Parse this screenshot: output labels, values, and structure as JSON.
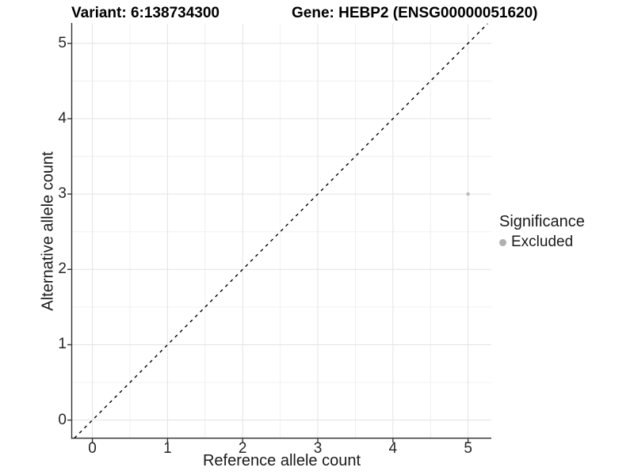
{
  "chart_data": {
    "type": "scatter",
    "title_variant": "Variant: 6:138734300",
    "title_gene": "Gene: HEBP2 (ENSG00000051620)",
    "xlabel": "Reference allele count",
    "ylabel": "Alternative allele count",
    "xticks": [
      0,
      1,
      2,
      3,
      4,
      5
    ],
    "yticks": [
      0,
      1,
      2,
      3,
      4,
      5
    ],
    "xlim": [
      -0.27,
      5.31
    ],
    "ylim": [
      -0.24,
      5.26
    ],
    "minor_step": 0.5,
    "grid": true,
    "identity_line": {
      "slope": 1,
      "intercept": 0,
      "style": "dashed",
      "color": "#000000"
    },
    "series": [
      {
        "name": "Excluded",
        "color": "#bdbdbd",
        "points": [
          {
            "x": 5,
            "y": 3
          }
        ]
      }
    ],
    "legend": {
      "title": "Significance",
      "position": "right",
      "items": [
        {
          "label": "Excluded",
          "color": "#b0b0b0"
        }
      ]
    },
    "colors": {
      "background": "#ffffff",
      "grid_major": "#e3e3e3",
      "grid_minor": "#f0f0f0",
      "axis_line": "#333333",
      "tick_mark": "#333333",
      "text": "#1a1a1a"
    }
  }
}
